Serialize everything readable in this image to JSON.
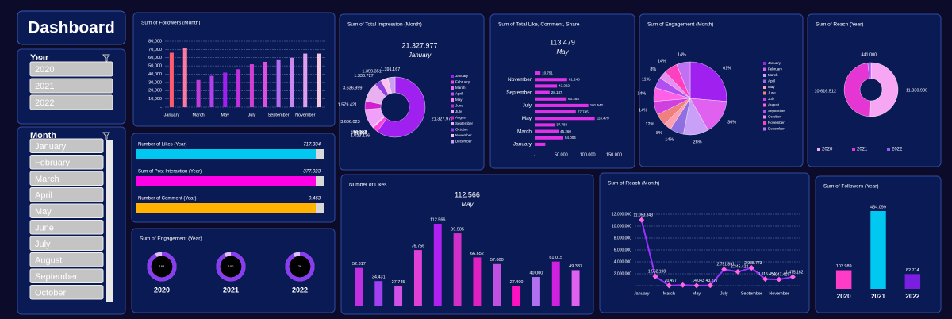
{
  "title": "Dashboard",
  "slicers": [
    {
      "title": "Year",
      "items": [
        "2020",
        "2021",
        "2022"
      ]
    },
    {
      "title": "Month",
      "items": [
        "January",
        "February",
        "March",
        "April",
        "May",
        "June",
        "July",
        "August",
        "September",
        "October"
      ]
    }
  ],
  "chart_data": [
    {
      "type": "bar",
      "title": "Sum of Followers (Month)",
      "categories": [
        "January",
        null,
        "March",
        null,
        "May",
        null,
        "July",
        null,
        "September",
        null,
        "November",
        null
      ],
      "values": [
        66000,
        72000,
        33000,
        38000,
        42000,
        46000,
        52000,
        55000,
        58000,
        60000,
        65000,
        65000
      ],
      "colors": [
        "#ff5a6e",
        "#ff7aa0",
        "#c03cd8",
        "#b040e8",
        "#a020f0",
        "#c030e0",
        "#d040d0",
        "#e050e0",
        "#b36cf0",
        "#c888f0",
        "#e0a0f0",
        "#f8c8e0"
      ],
      "ylim": [
        0,
        80000
      ],
      "yticks": [
        {
          "value": 0,
          "label": "-"
        },
        {
          "value": 10000,
          "label": "10,000"
        },
        {
          "value": 20000,
          "label": "20,000"
        },
        {
          "value": 30000,
          "label": "30,000"
        },
        {
          "value": 40000,
          "label": "40,000"
        },
        {
          "value": 50000,
          "label": "50,000"
        },
        {
          "value": 60000,
          "label": "60,000"
        },
        {
          "value": 70000,
          "label": "70,000"
        },
        {
          "value": 80000,
          "label": "80,000"
        }
      ],
      "grid": true
    },
    {
      "type": "donut",
      "title": "Sum of Total Impression (Month)",
      "highlight": "21.327.977",
      "highlight_label": "January",
      "categories": [
        "January",
        "February",
        "March",
        "April",
        "May",
        "June",
        "July",
        "August",
        "September",
        "October",
        "November",
        "December"
      ],
      "values": [
        21327977,
        1023136,
        21567,
        57003,
        106847,
        50397,
        3606023,
        1579421,
        3636999,
        1330727,
        1359351,
        1391167
      ],
      "value_labels": [
        "21.327.977",
        "1.023.136",
        "21.567",
        "57.003",
        "106.847",
        "50.397",
        "3.606.023",
        "1.579.421",
        "3.636.999",
        "1.330.727",
        "1.359.351",
        "1.391.167"
      ],
      "colors": [
        "#a020f0",
        "#ff40e0",
        "#e070f0",
        "#c050e8",
        "#ff80f0",
        "#b030d8",
        "#f0a0f8",
        "#d020d0",
        "#e8b0f0",
        "#9040e0",
        "#ffc0f0",
        "#c8a0f0"
      ]
    },
    {
      "type": "hbar",
      "title": "Sum of Total Like, Comment, Share",
      "highlight": "113.479",
      "highlight_label": "May",
      "categories": [
        "January",
        null,
        "March",
        null,
        "May",
        null,
        "July",
        null,
        "September",
        null,
        "November",
        null
      ],
      "values": [
        20000,
        54004,
        45260,
        37783,
        113479,
        77745,
        101542,
        60254,
        28187,
        42222,
        61248,
        10751
      ],
      "value_labels": [
        null,
        "54.004",
        "45.260",
        "37.783",
        "113.479",
        "77.745",
        "101.542",
        "60.254",
        "28.187",
        "42.222",
        "61.248",
        "10.751"
      ],
      "color": "#e030e8",
      "xlim": [
        0,
        150000
      ],
      "xticks": [
        {
          "value": 0,
          "label": "-"
        },
        {
          "value": 50000,
          "label": "50.000"
        },
        {
          "value": 100000,
          "label": "100.000"
        },
        {
          "value": 150000,
          "label": "150.000"
        }
      ]
    },
    {
      "type": "pie",
      "title": "Sum of Engagement (Month)",
      "categories": [
        "January",
        "February",
        "March",
        "April",
        "May",
        "June",
        "July",
        "August",
        "September",
        "October",
        "November",
        "December"
      ],
      "values": [
        61,
        36,
        26,
        14,
        8,
        12,
        14,
        14,
        11,
        8,
        14,
        14
      ],
      "value_labels": [
        "61%",
        "36%",
        "26%",
        "14%",
        "8%",
        "12%",
        "14%",
        "14%",
        "11%",
        "8%",
        "14%",
        "14%"
      ],
      "colors": [
        "#a020f0",
        "#e060f0",
        "#c8a0f8",
        "#9070e0",
        "#ffa0b0",
        "#f08080",
        "#d040e0",
        "#ff60e8",
        "#b050f0",
        "#e890f0",
        "#ff40c0",
        "#c070f0"
      ]
    },
    {
      "type": "donut",
      "title": "Sum of Reach (Year)",
      "categories": [
        "2020",
        "2021",
        "2022"
      ],
      "values": [
        11330936,
        10616512,
        441000
      ],
      "value_labels": [
        "11.330.936",
        "10.616.512",
        "441.000"
      ],
      "colors": [
        "#f7a6f3",
        "#e535d2",
        "#9b59f5"
      ],
      "legend": "bottom"
    },
    {
      "type": "progress",
      "items": [
        {
          "name": "Number of Likes (Year)",
          "value": 717334,
          "value_label": "717.334",
          "color": "#00c8f0"
        },
        {
          "name": "Sum of  Post Interaction (Year)",
          "value": 377923,
          "value_label": "377.923",
          "color": "#ff00e6"
        },
        {
          "name": "Number of Comment (Year)",
          "value": 9463,
          "value_label": "9.463",
          "color": "#ffb300"
        }
      ]
    },
    {
      "type": "ring",
      "title": "Sum of Engagement (Year)",
      "categories": [
        "2020",
        "2021",
        "2022"
      ],
      "values": [
        164,
        100,
        76
      ],
      "color": "#8a3cf0"
    },
    {
      "type": "bar",
      "title": "Number of Likes",
      "highlight": "112.566",
      "highlight_label": "May",
      "values": [
        52317,
        34431,
        27745,
        76756,
        112566,
        99505,
        66652,
        57600,
        27400,
        40000,
        61015,
        49337
      ],
      "value_labels": [
        "52.317",
        "34.431",
        "27.745",
        "76.756",
        "112.566",
        "99.505",
        "66.652",
        "57.600",
        "27.400",
        "40.000",
        "61.015",
        "49.337"
      ],
      "colors": [
        "#c030e0",
        "#a040f0",
        "#d050e8",
        "#e040d8",
        "#b020f0",
        "#d030c8",
        "#e020c0",
        "#c050e0",
        "#ff10c0",
        "#b070f0",
        "#d020e0",
        "#e060f0"
      ]
    },
    {
      "type": "line",
      "title": "Sum of Reach (Month)",
      "categories": [
        "January",
        null,
        "March",
        null,
        "May",
        null,
        "July",
        null,
        "September",
        null,
        "November",
        null
      ],
      "values": [
        11053343,
        1562198,
        20497,
        100000,
        14043,
        43277,
        2751891,
        2345422,
        2988773,
        1115454,
        1047417,
        1475162
      ],
      "value_labels": [
        "11.053.343",
        "1.562.198",
        "20.497",
        null,
        "14.043",
        "43.277",
        "2.751.891",
        "2.345.422",
        "2.988.773",
        "1.115.454",
        "1.047.417",
        "1.475.162"
      ],
      "color": "#9b30ff",
      "marker_color": "#ff66e0",
      "ylim": [
        0,
        12000000
      ],
      "yticks": [
        {
          "value": 0,
          "label": "-"
        },
        {
          "value": 2000000,
          "label": "2.000.000"
        },
        {
          "value": 4000000,
          "label": "4.000.000"
        },
        {
          "value": 6000000,
          "label": "6.000.000"
        },
        {
          "value": 8000000,
          "label": "8.000.000"
        },
        {
          "value": 10000000,
          "label": "10.000.000"
        },
        {
          "value": 12000000,
          "label": "12.000.000"
        }
      ],
      "grid": true
    },
    {
      "type": "bar",
      "title": "Sum of Followers (Year)",
      "categories": [
        "2020",
        "2021",
        "2022"
      ],
      "values": [
        103989,
        434099,
        82714
      ],
      "value_labels": [
        "103.989",
        "434.099",
        "82.714"
      ],
      "colors": [
        "#ff3cc8",
        "#00c8f0",
        "#7a1fe0"
      ]
    }
  ]
}
